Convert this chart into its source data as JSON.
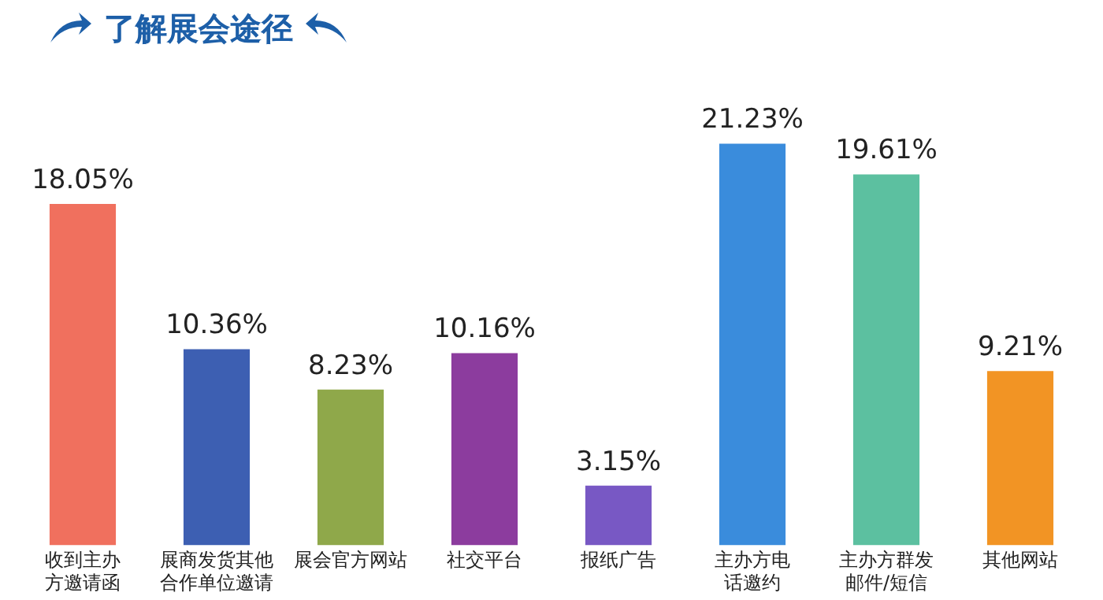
{
  "chart_data": {
    "type": "bar",
    "title": "了解展会途径",
    "categories": [
      "收到主办方邀请函",
      "展商发货其他合作单位邀请",
      "展会官方网站",
      "社交平台",
      "报纸广告",
      "主办方电话邀约",
      "主办方群发邮件/短信",
      "其他网站"
    ],
    "values": [
      18.05,
      10.36,
      8.23,
      10.16,
      3.15,
      21.23,
      19.61,
      9.21
    ],
    "value_labels": [
      "18.05%",
      "10.36%",
      "8.23%",
      "10.16%",
      "3.15%",
      "21.23%",
      "19.61%",
      "9.21%"
    ],
    "colors": [
      "#f0705e",
      "#3d5fb2",
      "#8fa84a",
      "#8c3c9e",
      "#7858c4",
      "#3a8cdc",
      "#5cc0a0",
      "#f29424"
    ],
    "grid": false,
    "legend": false
  }
}
